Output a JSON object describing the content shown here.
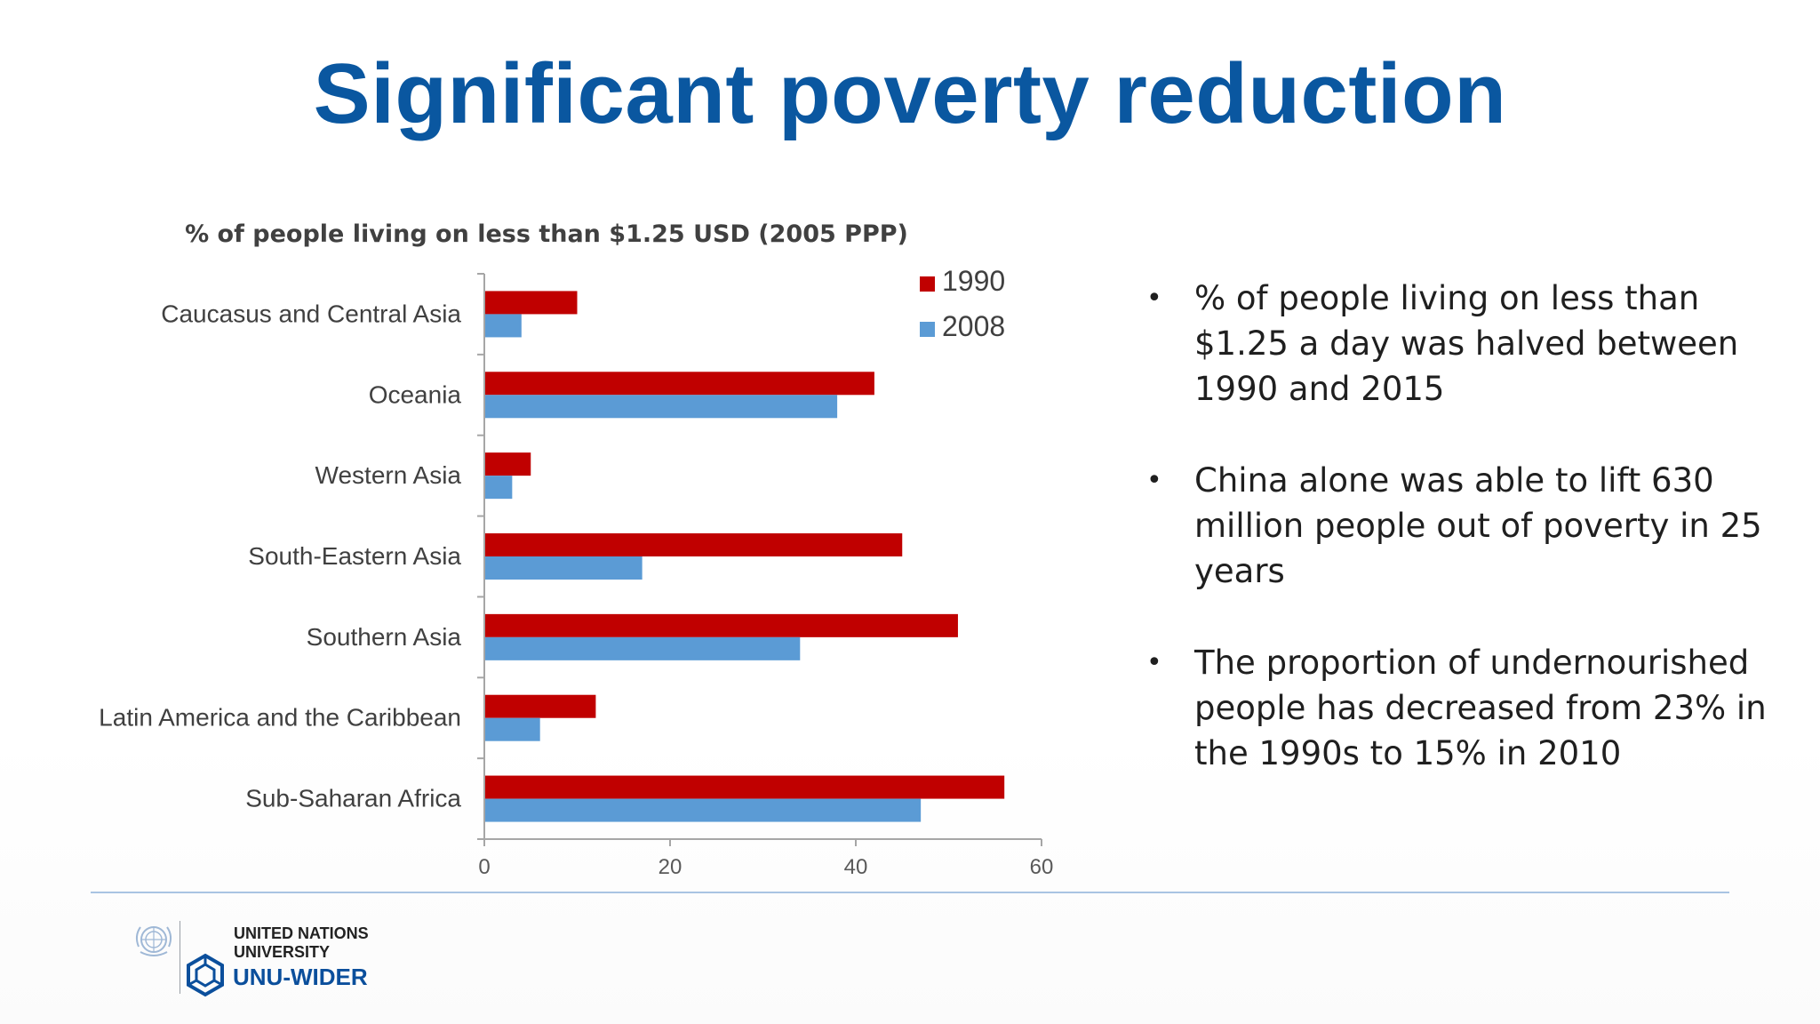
{
  "slide": {
    "title": "Significant poverty reduction"
  },
  "bullets": [
    {
      "text": "% of people living on less than $1.25 a day was halved between 1990 and 2015"
    },
    {
      "text": "China alone was able to lift 630 million people out of poverty in 25 years"
    },
    {
      "text": "The proportion of undernourished people has decreased from 23% in the 1990s to 15% in 2010"
    }
  ],
  "footer": {
    "org_line1": "UNITED NATIONS",
    "org_line2": "UNIVERSITY",
    "brand": "UNU-WIDER"
  },
  "colors": {
    "title": "#0a57a0",
    "series_1990": "#c00000",
    "series_2008": "#5b9bd5",
    "footer_rule": "#a9c4e2",
    "brand": "#0b4f9c"
  },
  "chart_data": {
    "type": "bar",
    "orientation": "horizontal",
    "title": "% of people living on less than $1.25 USD (2005 PPP)",
    "categories": [
      "Caucasus and Central Asia",
      "Oceania",
      "Western Asia",
      "South-Eastern Asia",
      "Southern Asia",
      "Latin America and the Caribbean",
      "Sub-Saharan Africa"
    ],
    "series": [
      {
        "name": "1990",
        "color": "#c00000",
        "values": [
          10,
          42,
          5,
          45,
          51,
          12,
          56
        ]
      },
      {
        "name": "2008",
        "color": "#5b9bd5",
        "values": [
          4,
          38,
          3,
          17,
          34,
          6,
          47
        ]
      }
    ],
    "xlim": [
      0,
      60
    ],
    "xticks": [
      0,
      20,
      40,
      60
    ],
    "legend": "top-right",
    "grid": false
  }
}
